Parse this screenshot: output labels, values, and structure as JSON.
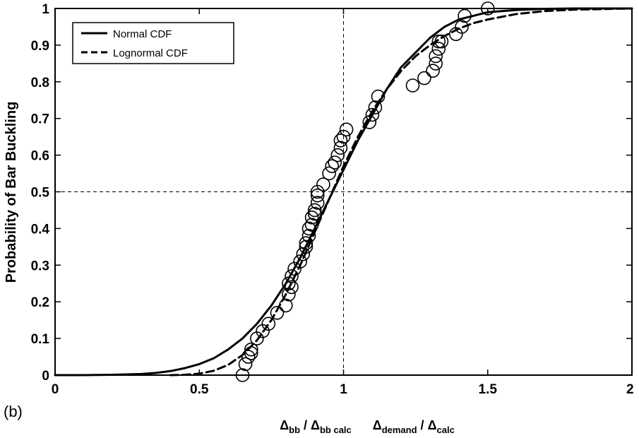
{
  "panel_label": "(b)",
  "chart_data": {
    "type": "line",
    "title": "",
    "ylabel": "Probability of Bar Buckling",
    "xlabel": {
      "part1_main": "Δ",
      "part1_sub": "bb",
      "part1_sep": " / ",
      "part1_main2": "Δ",
      "part1_sub2": "bb calc",
      "part2_main": "Δ",
      "part2_sub": "demand",
      "part2_sep": " / ",
      "part2_main2": "Δ",
      "part2_sub2": "calc"
    },
    "xlim": [
      0,
      2
    ],
    "ylim": [
      0,
      1
    ],
    "xticks": [
      0,
      0.5,
      1,
      1.5,
      2
    ],
    "xtick_labels": [
      "0",
      "0.5",
      "1",
      "1.5",
      "2"
    ],
    "yticks": [
      0,
      0.1,
      0.2,
      0.3,
      0.4,
      0.5,
      0.6,
      0.7,
      0.8,
      0.9,
      1
    ],
    "ytick_labels": [
      "0",
      "0.1",
      "0.2",
      "0.3",
      "0.4",
      "0.5",
      "0.6",
      "0.7",
      "0.8",
      "0.9",
      "1"
    ],
    "grid": false,
    "reference_lines": {
      "x": 1,
      "y": 0.5
    },
    "legend": {
      "position": "top-left",
      "entries": [
        "Normal CDF",
        "Lognormal CDF"
      ]
    },
    "series": [
      {
        "name": "Normal CDF",
        "style": "solid",
        "x": [
          0.0,
          0.1,
          0.2,
          0.3,
          0.35,
          0.4,
          0.45,
          0.5,
          0.55,
          0.6,
          0.65,
          0.7,
          0.75,
          0.8,
          0.85,
          0.9,
          0.95,
          1.0,
          1.05,
          1.1,
          1.15,
          1.2,
          1.25,
          1.3,
          1.35,
          1.4,
          1.45,
          1.5,
          1.6,
          1.7,
          1.8,
          1.9,
          2.0
        ],
        "y": [
          0.0,
          0.0,
          0.001,
          0.003,
          0.006,
          0.011,
          0.019,
          0.03,
          0.046,
          0.07,
          0.1,
          0.14,
          0.19,
          0.25,
          0.32,
          0.4,
          0.48,
          0.56,
          0.64,
          0.71,
          0.78,
          0.84,
          0.88,
          0.92,
          0.95,
          0.97,
          0.98,
          0.99,
          0.996,
          0.999,
          1.0,
          1.0,
          1.0
        ]
      },
      {
        "name": "Lognormal CDF",
        "style": "dashed",
        "x": [
          0.4,
          0.45,
          0.5,
          0.55,
          0.6,
          0.65,
          0.7,
          0.75,
          0.8,
          0.85,
          0.9,
          0.95,
          1.0,
          1.05,
          1.1,
          1.15,
          1.2,
          1.25,
          1.3,
          1.35,
          1.4,
          1.45,
          1.5,
          1.6,
          1.7,
          1.8,
          2.0
        ],
        "y": [
          0.0,
          0.001,
          0.004,
          0.012,
          0.028,
          0.055,
          0.095,
          0.15,
          0.22,
          0.3,
          0.39,
          0.48,
          0.57,
          0.65,
          0.72,
          0.78,
          0.83,
          0.87,
          0.9,
          0.925,
          0.945,
          0.96,
          0.97,
          0.985,
          0.993,
          0.997,
          1.0
        ]
      },
      {
        "name": "",
        "style": "markers",
        "marker": "open-circle",
        "x": [
          0.65,
          0.66,
          0.67,
          0.68,
          0.68,
          0.7,
          0.72,
          0.74,
          0.77,
          0.8,
          0.81,
          0.81,
          0.82,
          0.82,
          0.83,
          0.85,
          0.86,
          0.87,
          0.87,
          0.88,
          0.88,
          0.89,
          0.89,
          0.9,
          0.9,
          0.91,
          0.91,
          0.91,
          0.93,
          0.95,
          0.96,
          0.97,
          0.98,
          0.99,
          0.99,
          1.0,
          1.01,
          1.09,
          1.1,
          1.11,
          1.12,
          1.24,
          1.28,
          1.31,
          1.32,
          1.32,
          1.33,
          1.33,
          1.34,
          1.39,
          1.41,
          1.42,
          1.5
        ],
        "y": [
          0.0,
          0.03,
          0.05,
          0.06,
          0.07,
          0.1,
          0.12,
          0.14,
          0.17,
          0.19,
          0.22,
          0.25,
          0.24,
          0.27,
          0.29,
          0.31,
          0.33,
          0.35,
          0.36,
          0.38,
          0.4,
          0.41,
          0.43,
          0.44,
          0.45,
          0.47,
          0.49,
          0.5,
          0.52,
          0.55,
          0.57,
          0.58,
          0.6,
          0.62,
          0.64,
          0.65,
          0.67,
          0.69,
          0.71,
          0.73,
          0.76,
          0.79,
          0.81,
          0.83,
          0.85,
          0.87,
          0.89,
          0.91,
          0.91,
          0.93,
          0.95,
          0.98,
          1.0
        ]
      }
    ]
  }
}
